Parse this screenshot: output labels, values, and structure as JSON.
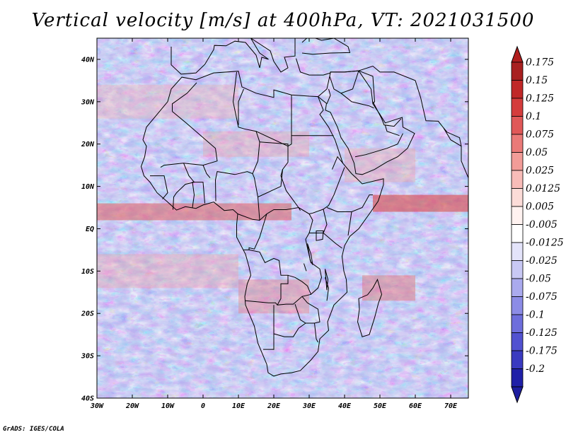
{
  "title": "Vertical velocity [m/s] at 400hPa, VT: 2021031500",
  "footer": "GrADS: IGES/COLA",
  "map": {
    "lon_range": [
      -30,
      75
    ],
    "lat_range": [
      -40,
      45
    ],
    "lat_ticks": [
      {
        "value": 40,
        "label": "40N"
      },
      {
        "value": 30,
        "label": "30N"
      },
      {
        "value": 20,
        "label": "20N"
      },
      {
        "value": 10,
        "label": "10N"
      },
      {
        "value": 0,
        "label": "EQ"
      },
      {
        "value": -10,
        "label": "10S"
      },
      {
        "value": -20,
        "label": "20S"
      },
      {
        "value": -30,
        "label": "30S"
      },
      {
        "value": -40,
        "label": "40S"
      }
    ],
    "lon_ticks": [
      {
        "value": -30,
        "label": "30W"
      },
      {
        "value": -20,
        "label": "20W"
      },
      {
        "value": -10,
        "label": "10W"
      },
      {
        "value": 0,
        "label": "0"
      },
      {
        "value": 10,
        "label": "10E"
      },
      {
        "value": 20,
        "label": "20E"
      },
      {
        "value": 30,
        "label": "30E"
      },
      {
        "value": 40,
        "label": "40E"
      },
      {
        "value": 50,
        "label": "50E"
      },
      {
        "value": 60,
        "label": "60E"
      },
      {
        "value": 70,
        "label": "70E"
      }
    ]
  },
  "colorbar": {
    "levels": [
      {
        "label": "0.175",
        "color": "#a82020"
      },
      {
        "label": "0.15",
        "color": "#c02828"
      },
      {
        "label": "0.125",
        "color": "#d43c3c"
      },
      {
        "label": "0.1",
        "color": "#e05858"
      },
      {
        "label": "0.075",
        "color": "#ea7a78"
      },
      {
        "label": "0.05",
        "color": "#f29c98"
      },
      {
        "label": "0.025",
        "color": "#f8bcb8"
      },
      {
        "label": "0.0125",
        "color": "#fcdcd8"
      },
      {
        "label": "0.005",
        "color": "#fff2f0"
      },
      {
        "label": "-0.005",
        "color": "#ffffff"
      },
      {
        "label": "-0.0125",
        "color": "#e4e4fa"
      },
      {
        "label": "-0.025",
        "color": "#c8c8f4"
      },
      {
        "label": "-0.05",
        "color": "#aaaaee"
      },
      {
        "label": "-0.075",
        "color": "#8c8ce6"
      },
      {
        "label": "-0.1",
        "color": "#6e6edc"
      },
      {
        "label": "-0.125",
        "color": "#5252d0"
      },
      {
        "label": "-0.175",
        "color": "#3a3ac0"
      },
      {
        "label": "-0.2",
        "color": "#2020a8"
      }
    ],
    "top_color": "#b01e1e",
    "bottom_color": "#1e1ea0"
  }
}
